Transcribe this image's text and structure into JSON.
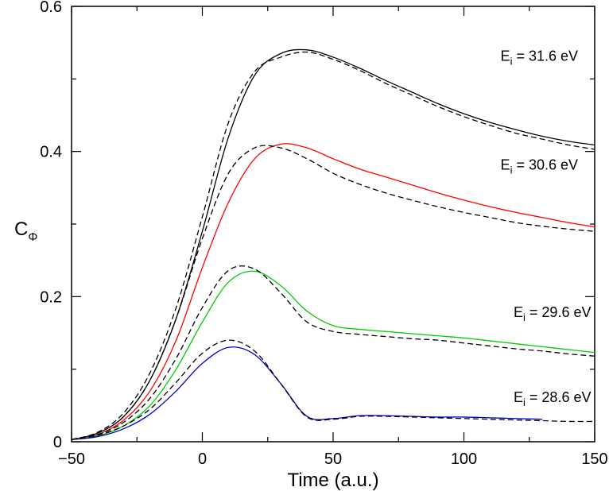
{
  "chart_data": {
    "type": "line",
    "title": "",
    "xlabel": "Time (a.u.)",
    "ylabel": {
      "main": "C",
      "subscript": "Φ"
    },
    "xlim": [
      -50,
      150
    ],
    "ylim": [
      0,
      0.6
    ],
    "xticks": [
      -50,
      0,
      50,
      100,
      150
    ],
    "xtick_labels": [
      "−50",
      "0",
      "50",
      "100",
      "150"
    ],
    "yticks": [
      0,
      0.2,
      0.4,
      0.6
    ],
    "ytick_labels": [
      "0",
      "0.2",
      "0.4",
      "0.6"
    ],
    "grid": false,
    "line_styles": {
      "solid": "solid",
      "dashed": "dashed"
    },
    "series": [
      {
        "color": "#000000",
        "style": "solid",
        "x": [
          -50,
          -40,
          -30,
          -20,
          -10,
          0,
          10,
          20,
          30,
          40,
          50,
          60,
          70,
          80,
          90,
          100,
          110,
          120,
          130,
          140,
          150
        ],
        "y": [
          0.003,
          0.012,
          0.035,
          0.085,
          0.17,
          0.29,
          0.42,
          0.505,
          0.535,
          0.54,
          0.53,
          0.515,
          0.498,
          0.482,
          0.466,
          0.452,
          0.44,
          0.43,
          0.421,
          0.414,
          0.409
        ]
      },
      {
        "color": "#000000",
        "style": "dashed",
        "x": [
          -50,
          -40,
          -30,
          -20,
          -10,
          0,
          10,
          20,
          30,
          40,
          50,
          60,
          70,
          80,
          90,
          100,
          110,
          120,
          130,
          140,
          150
        ],
        "y": [
          0.003,
          0.013,
          0.04,
          0.095,
          0.185,
          0.31,
          0.44,
          0.51,
          0.53,
          0.537,
          0.527,
          0.512,
          0.494,
          0.478,
          0.462,
          0.448,
          0.436,
          0.425,
          0.417,
          0.409,
          0.403
        ]
      },
      {
        "color": "#ff0000",
        "style": "solid",
        "x": [
          -50,
          -40,
          -30,
          -20,
          -10,
          0,
          10,
          20,
          30,
          40,
          50,
          60,
          70,
          80,
          90,
          100,
          110,
          120,
          130,
          140,
          150
        ],
        "y": [
          0.003,
          0.01,
          0.03,
          0.07,
          0.14,
          0.24,
          0.33,
          0.39,
          0.41,
          0.405,
          0.39,
          0.376,
          0.365,
          0.354,
          0.343,
          0.333,
          0.324,
          0.316,
          0.309,
          0.302,
          0.296
        ]
      },
      {
        "color": "#000000",
        "style": "dashed",
        "x": [
          -50,
          -40,
          -30,
          -20,
          -10,
          0,
          10,
          20,
          30,
          40,
          50,
          60,
          70,
          80,
          90,
          100,
          110,
          120,
          130,
          140,
          150
        ],
        "y": [
          0.003,
          0.012,
          0.035,
          0.085,
          0.17,
          0.28,
          0.37,
          0.405,
          0.405,
          0.39,
          0.37,
          0.355,
          0.343,
          0.333,
          0.324,
          0.316,
          0.309,
          0.302,
          0.297,
          0.293,
          0.29
        ]
      },
      {
        "color": "#00cc00",
        "style": "solid",
        "x": [
          -50,
          -40,
          -30,
          -20,
          -10,
          0,
          10,
          20,
          30,
          40,
          50,
          60,
          70,
          80,
          90,
          100,
          110,
          120,
          130,
          140,
          150
        ],
        "y": [
          0.003,
          0.008,
          0.022,
          0.05,
          0.1,
          0.165,
          0.22,
          0.235,
          0.215,
          0.18,
          0.16,
          0.155,
          0.152,
          0.149,
          0.146,
          0.143,
          0.139,
          0.135,
          0.131,
          0.127,
          0.123
        ]
      },
      {
        "color": "#000000",
        "style": "dashed",
        "x": [
          -50,
          -40,
          -30,
          -20,
          -10,
          0,
          10,
          20,
          30,
          40,
          50,
          60,
          70,
          80,
          90,
          100,
          110,
          120,
          130,
          140,
          150
        ],
        "y": [
          0.003,
          0.01,
          0.027,
          0.06,
          0.115,
          0.185,
          0.236,
          0.238,
          0.205,
          0.165,
          0.152,
          0.148,
          0.145,
          0.142,
          0.14,
          0.136,
          0.132,
          0.128,
          0.125,
          0.121,
          0.118
        ]
      },
      {
        "color": "#0000cc",
        "style": "solid",
        "x": [
          -50,
          -40,
          -30,
          -20,
          -10,
          0,
          10,
          20,
          30,
          40,
          50,
          60,
          70,
          80,
          90,
          100,
          110,
          120,
          130
        ],
        "y": [
          0.003,
          0.007,
          0.018,
          0.038,
          0.07,
          0.108,
          0.13,
          0.12,
          0.08,
          0.035,
          0.032,
          0.036,
          0.036,
          0.035,
          0.034,
          0.034,
          0.033,
          0.032,
          0.031
        ]
      },
      {
        "color": "#000000",
        "style": "dashed",
        "x": [
          -50,
          -40,
          -30,
          -20,
          -10,
          0,
          10,
          20,
          30,
          40,
          50,
          60,
          70,
          80,
          90,
          100,
          110,
          120,
          130,
          140,
          150
        ],
        "y": [
          0.003,
          0.009,
          0.022,
          0.045,
          0.082,
          0.122,
          0.14,
          0.125,
          0.08,
          0.034,
          0.031,
          0.035,
          0.035,
          0.034,
          0.033,
          0.032,
          0.031,
          0.03,
          0.029,
          0.028,
          0.028
        ]
      }
    ],
    "annotations": [
      {
        "main": "E",
        "sub": "i",
        "rest": " = 31.6 eV",
        "x": 114,
        "y": 0.525
      },
      {
        "main": "E",
        "sub": "i",
        "rest": " = 30.6 eV",
        "x": 114,
        "y": 0.375
      },
      {
        "main": "E",
        "sub": "i",
        "rest": " = 29.6 eV",
        "x": 119,
        "y": 0.172
      },
      {
        "main": "E",
        "sub": "i",
        "rest": " = 28.6 eV",
        "x": 119,
        "y": 0.055
      }
    ]
  }
}
